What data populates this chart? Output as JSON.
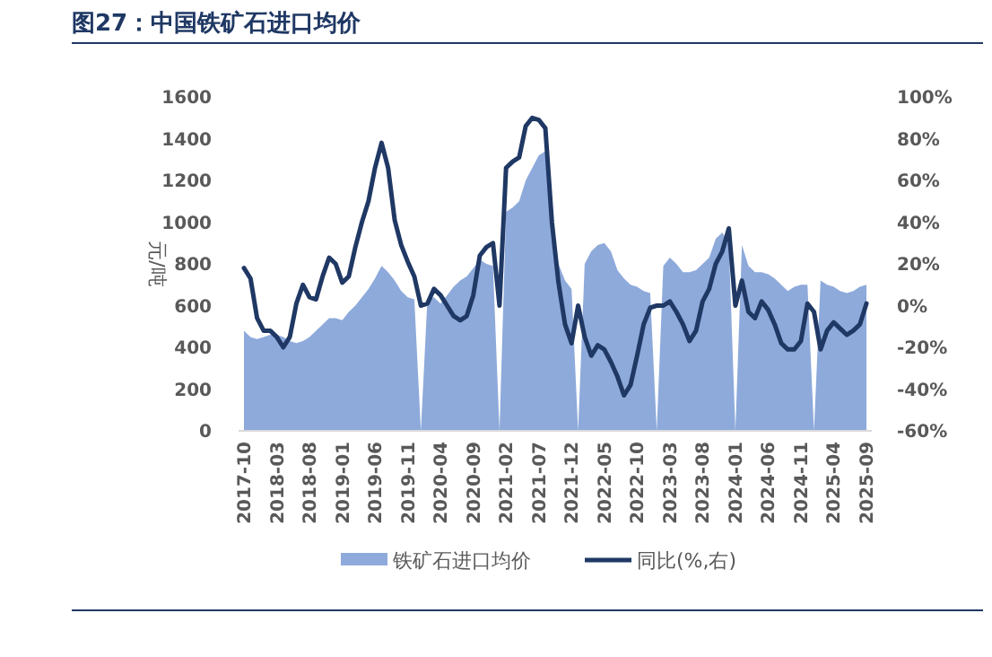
{
  "chart_data": {
    "type": "area",
    "title": "图27：中国铁矿石进口均价",
    "ylabel": "元/吨",
    "legend": "bottom",
    "categories": [
      "2017-10",
      null,
      null,
      null,
      null,
      "2018-03",
      null,
      null,
      null,
      null,
      "2018-08",
      null,
      null,
      null,
      null,
      "2019-01",
      null,
      null,
      null,
      null,
      "2019-06",
      null,
      null,
      null,
      null,
      "2019-11",
      null,
      null,
      null,
      null,
      "2020-04",
      null,
      null,
      null,
      null,
      "2020-09",
      null,
      null,
      null,
      null,
      "2021-02",
      null,
      null,
      null,
      null,
      "2021-07",
      null,
      null,
      null,
      null,
      "2021-12",
      null,
      null,
      null,
      null,
      "2022-05",
      null,
      null,
      null,
      null,
      "2022-10",
      null,
      null,
      null,
      null,
      "2023-03",
      null,
      null,
      null,
      null,
      "2023-08",
      null,
      null,
      null,
      null,
      "2024-01",
      null,
      null,
      null,
      null,
      "2024-06",
      null,
      null,
      null,
      null,
      "2024-11",
      null,
      null,
      null,
      null,
      "2025-04",
      null,
      null,
      null,
      null,
      "2025-09"
    ],
    "ylim": [
      0,
      1600
    ],
    "yticks": [
      0,
      200,
      400,
      600,
      800,
      1000,
      1200,
      1400,
      1600
    ],
    "y2lim": [
      -60,
      100
    ],
    "y2ticks": [
      {
        "value": -60,
        "label": "-60%"
      },
      {
        "value": -40,
        "label": "-40%"
      },
      {
        "value": -20,
        "label": "-20%"
      },
      {
        "value": 0,
        "label": "0%"
      },
      {
        "value": 20,
        "label": "20%"
      },
      {
        "value": 40,
        "label": "40%"
      },
      {
        "value": 60,
        "label": "60%"
      },
      {
        "value": 80,
        "label": "80%"
      },
      {
        "value": 100,
        "label": "100%"
      }
    ],
    "series": [
      {
        "name": "铁矿石进口均价",
        "color": "#8eaadb",
        "values": [
          480,
          450,
          440,
          450,
          460,
          460,
          450,
          430,
          420,
          430,
          450,
          480,
          510,
          540,
          540,
          530,
          570,
          600,
          640,
          680,
          730,
          790,
          760,
          720,
          670,
          640,
          630,
          0,
          630,
          640,
          610,
          650,
          690,
          720,
          740,
          780,
          820,
          800,
          790,
          0,
          1050,
          1070,
          1100,
          1200,
          1260,
          1320,
          1340,
          1000,
          800,
          720,
          680,
          0,
          800,
          860,
          890,
          900,
          860,
          770,
          730,
          700,
          690,
          670,
          660,
          0,
          790,
          830,
          800,
          760,
          760,
          770,
          800,
          830,
          920,
          950,
          900,
          0,
          890,
          790,
          760,
          760,
          750,
          730,
          700,
          670,
          690,
          700,
          700,
          0,
          720,
          700,
          690,
          670,
          660,
          670,
          690,
          700
        ]
      },
      {
        "name": "同比(%,右)",
        "type": "line",
        "axis": "y2",
        "color": "#1f3864",
        "values": [
          18,
          13,
          -6,
          -12,
          -12,
          -15,
          -20,
          -15,
          1,
          10,
          4,
          3,
          14,
          23,
          20,
          11,
          14,
          28,
          40,
          50,
          66,
          78,
          66,
          41,
          29,
          21,
          14,
          0,
          1,
          8,
          5,
          0,
          -5,
          -7,
          -5,
          5,
          24,
          28,
          30,
          0,
          66,
          69,
          71,
          86,
          90,
          89,
          85,
          40,
          11,
          -9,
          -18,
          0,
          -15,
          -24,
          -19,
          -21,
          -27,
          -34,
          -43,
          -38,
          -24,
          -9,
          -1,
          0,
          0,
          2,
          -3,
          -9,
          -17,
          -12,
          2,
          8,
          20,
          26,
          37,
          0,
          12,
          -3,
          -6,
          2,
          -2,
          -9,
          -18,
          -21,
          -21,
          -17,
          1,
          -3,
          -21,
          -12,
          -8,
          -11,
          -14,
          -12,
          -9,
          1
        ]
      }
    ]
  }
}
